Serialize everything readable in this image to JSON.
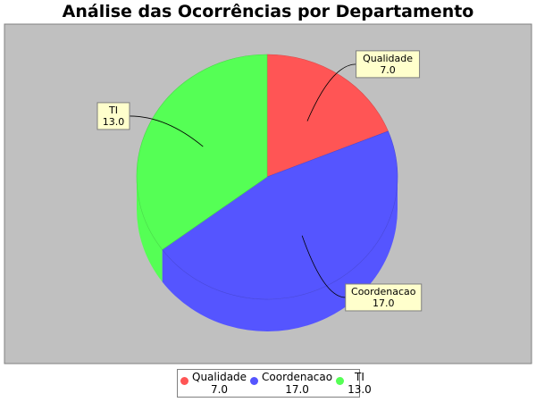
{
  "chart_data": {
    "type": "pie",
    "title": "Análise das Ocorrências por Departamento",
    "categories": [
      "Qualidade",
      "Coordenacao",
      "TI"
    ],
    "values": [
      7.0,
      17.0,
      13.0
    ],
    "value_labels": [
      "7.0",
      "17.0",
      "13.0"
    ],
    "colors": [
      "#ff5555",
      "#5555ff",
      "#55ff55"
    ],
    "legend_position": "bottom",
    "three_d": true
  },
  "style": {
    "plot_background": "#c0c0c0",
    "label_background": "#ffffcc"
  }
}
